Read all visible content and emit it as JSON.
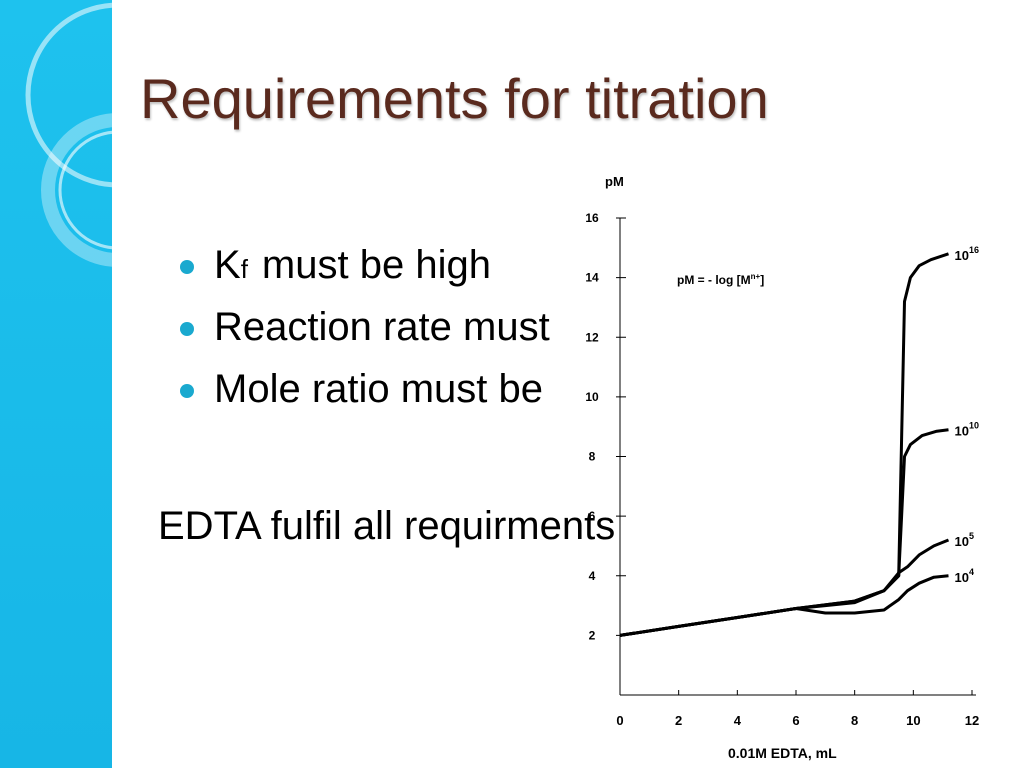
{
  "slide": {
    "title": "Requirements for titration",
    "bullets": [
      {
        "lead": "K",
        "sub": "f",
        "text": "must be high"
      },
      {
        "lead": "",
        "sub": "",
        "text": "Reaction rate must"
      },
      {
        "lead": "",
        "sub": "",
        "text": "Mole ratio must be"
      }
    ],
    "conclusion": "EDTA fulfil all requirments"
  },
  "colors": {
    "title": "#5a2a1e",
    "side_band": "#1ec2ee",
    "bullet": "#1aa9cf"
  },
  "chart_data": {
    "type": "line",
    "ylabel": "pM",
    "xlabel": "0.01M EDTA, mL",
    "annotation": "pM = - log [M",
    "annotation_sup": "n+",
    "annotation_end": "]",
    "xlim": [
      0,
      12
    ],
    "ylim": [
      0,
      16
    ],
    "xticks": [
      "0",
      "2",
      "4",
      "6",
      "8",
      "10",
      "12"
    ],
    "yticks": [
      "2",
      "4",
      "6",
      "8",
      "10",
      "12",
      "14",
      "16"
    ],
    "series": [
      {
        "base": "10",
        "exp": "16",
        "x": [
          0,
          2,
          4,
          6,
          8,
          9,
          9.5,
          9.7,
          9.9,
          10.2,
          10.6,
          11.2
        ],
        "y": [
          2,
          2.3,
          2.6,
          2.9,
          3.15,
          3.5,
          4.0,
          13.2,
          14.0,
          14.4,
          14.6,
          14.8
        ]
      },
      {
        "base": "10",
        "exp": "10",
        "x": [
          0,
          2,
          4,
          6,
          8,
          9,
          9.5,
          9.7,
          9.9,
          10.3,
          10.8,
          11.2
        ],
        "y": [
          2,
          2.3,
          2.6,
          2.9,
          3.15,
          3.5,
          4.0,
          8.0,
          8.4,
          8.7,
          8.85,
          8.9
        ]
      },
      {
        "base": "10",
        "exp": "5",
        "x": [
          0,
          2,
          4,
          6,
          7,
          8,
          9,
          9.5,
          9.8,
          10.2,
          10.7,
          11.2
        ],
        "y": [
          2,
          2.3,
          2.6,
          2.9,
          3.0,
          3.1,
          3.5,
          4.1,
          4.3,
          4.7,
          5.0,
          5.2
        ]
      },
      {
        "base": "10",
        "exp": "4",
        "x": [
          0,
          2,
          4,
          6,
          7,
          8,
          9,
          9.5,
          9.8,
          10.2,
          10.7,
          11.2
        ],
        "y": [
          2,
          2.3,
          2.6,
          2.9,
          2.75,
          2.75,
          2.85,
          3.2,
          3.5,
          3.75,
          3.95,
          4.0
        ]
      }
    ]
  }
}
